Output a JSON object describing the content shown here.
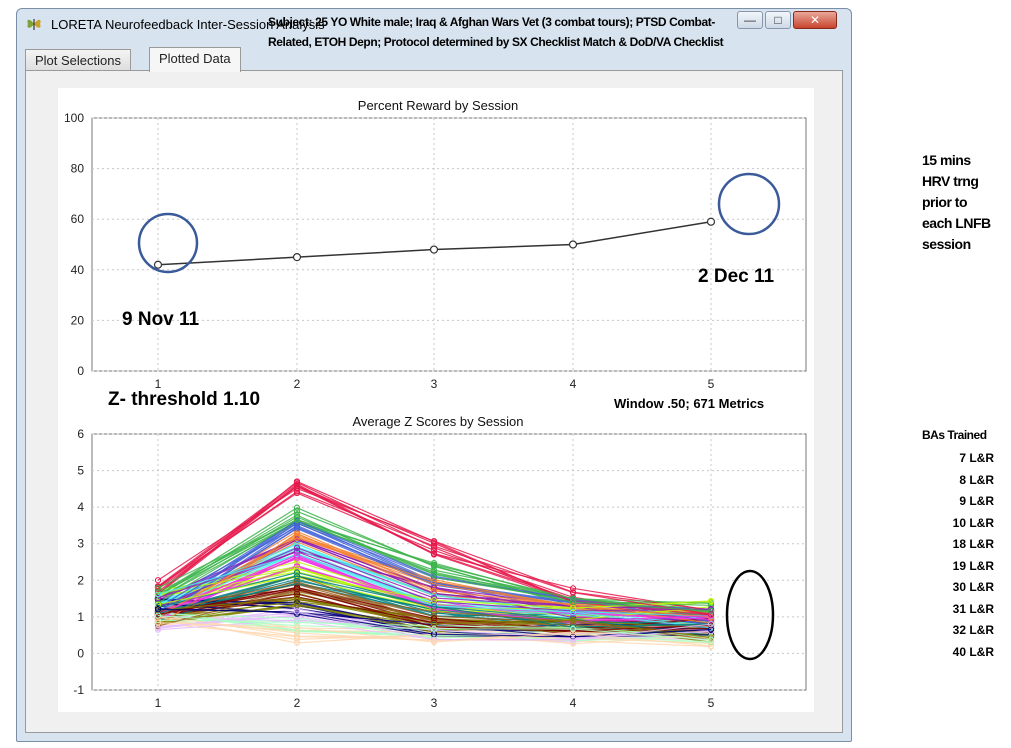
{
  "window": {
    "title": "LORETA Neurofeedback Inter-Session Analysis",
    "controls": {
      "minimize": "—",
      "maximize": "□",
      "close": "✕"
    }
  },
  "tabs": [
    {
      "label": "Plot Selections",
      "active": false
    },
    {
      "label": "Plotted Data",
      "active": true
    }
  ],
  "annotations": {
    "subject_line1": "Subject: 25 YO White male; Iraq & Afghan Wars Vet (3 combat tours); PTSD Combat-",
    "subject_line2": "Related, ETOH Depn; Protocol determined by SX Checklist Match & DoD/VA Checklist",
    "date_start": "9 Nov 11",
    "date_end": "2 Dec 11",
    "z_threshold": "Z- threshold 1.10",
    "window_metrics": "Window .50; 671 Metrics",
    "hrv_note": [
      "15 mins",
      "HRV trng",
      "prior to",
      "each LNFB",
      "session"
    ],
    "bas_title": "BAs Trained",
    "bas": [
      "7 L&R",
      "8 L&R",
      "9 L&R",
      "10 L&R",
      "18 L&R",
      "19 L&R",
      "30 L&R",
      "31 L&R",
      "32 L&R",
      "40 L&R"
    ]
  },
  "chart_data": [
    {
      "type": "line",
      "title": "Percent Reward by Session",
      "x": [
        1,
        2,
        3,
        4,
        5
      ],
      "series": [
        {
          "values": [
            42,
            45,
            48,
            50,
            59
          ]
        }
      ],
      "ylim": [
        0,
        100
      ],
      "yticks": [
        0,
        20,
        40,
        60,
        80,
        100
      ],
      "xticks": [
        "1",
        "2",
        "3",
        "4",
        "5"
      ],
      "grid": true,
      "line_color": "#333333"
    },
    {
      "type": "line",
      "title": "Average Z Scores by Session",
      "x": [
        1,
        2,
        3,
        4,
        5
      ],
      "series_count": 671,
      "series_sample": [
        [
          1.8,
          4.6,
          2.9,
          1.6,
          1.1
        ],
        [
          1.6,
          3.8,
          2.3,
          1.4,
          1.2
        ],
        [
          1.2,
          3.5,
          1.9,
          1.3,
          1.0
        ],
        [
          0.9,
          3.2,
          1.8,
          1.2,
          0.9
        ],
        [
          1.3,
          3.0,
          1.6,
          1.1,
          1.0
        ],
        [
          1.4,
          2.8,
          1.5,
          1.0,
          0.8
        ],
        [
          1.0,
          2.5,
          1.4,
          1.0,
          0.9
        ],
        [
          1.5,
          2.3,
          1.3,
          1.1,
          1.3
        ],
        [
          1.1,
          2.1,
          1.2,
          0.9,
          0.7
        ],
        [
          0.9,
          1.9,
          1.0,
          0.8,
          0.6
        ],
        [
          1.2,
          1.7,
          0.9,
          0.7,
          0.8
        ],
        [
          1.0,
          1.5,
          0.8,
          0.8,
          0.5
        ],
        [
          1.3,
          1.3,
          0.7,
          0.6,
          0.7
        ],
        [
          0.8,
          1.1,
          0.6,
          0.5,
          0.6
        ],
        [
          1.1,
          0.8,
          0.6,
          0.5,
          0.5
        ],
        [
          1.0,
          0.5,
          0.5,
          0.4,
          0.4
        ]
      ],
      "ylim": [
        -1,
        6
      ],
      "yticks": [
        -1,
        0,
        1,
        2,
        3,
        4,
        5,
        6
      ],
      "xticks": [
        "1",
        "2",
        "3",
        "4",
        "5"
      ],
      "grid": true
    }
  ],
  "colors": {
    "window_frame": "#d7e3ef",
    "circle_blue": "#3a5a9a",
    "circle_black": "#000000",
    "series_palette": [
      "#e6194b",
      "#3cb44b",
      "#4363d8",
      "#f58231",
      "#911eb4",
      "#46f0f0",
      "#f032e6",
      "#bcf60c",
      "#008080",
      "#9a6324",
      "#800000",
      "#808000",
      "#000075",
      "#e6beff",
      "#aaffc3",
      "#ffd8b1"
    ]
  },
  "icons": {
    "app": "butterfly-icon"
  }
}
